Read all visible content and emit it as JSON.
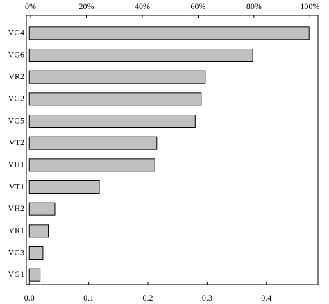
{
  "chart_data": {
    "type": "barh",
    "categories": [
      "VG4",
      "VG6",
      "VR2",
      "VG2",
      "VG5",
      "VT2",
      "VH1",
      "VT1",
      "VH2",
      "VR1",
      "VG3",
      "VG1"
    ],
    "values": [
      0.472,
      0.377,
      0.297,
      0.29,
      0.28,
      0.215,
      0.212,
      0.118,
      0.043,
      0.032,
      0.023,
      0.018
    ],
    "color": "#c0c0c0",
    "xlim": [
      -0.005,
      0.487
    ],
    "xticks": [
      {
        "value": 0,
        "label": "0.0"
      },
      0.1,
      0.2,
      0.3,
      0.4
    ],
    "x2lim": [
      -1.5,
      102.9
    ],
    "x2ticks": [
      {
        "value": 0,
        "label": "0%"
      },
      {
        "value": 20,
        "label": "20%"
      },
      {
        "value": 40,
        "label": "40%"
      },
      {
        "value": 60,
        "label": "60%"
      },
      {
        "value": 80,
        "label": "80%"
      },
      {
        "value": 100,
        "label": "100%"
      }
    ]
  }
}
